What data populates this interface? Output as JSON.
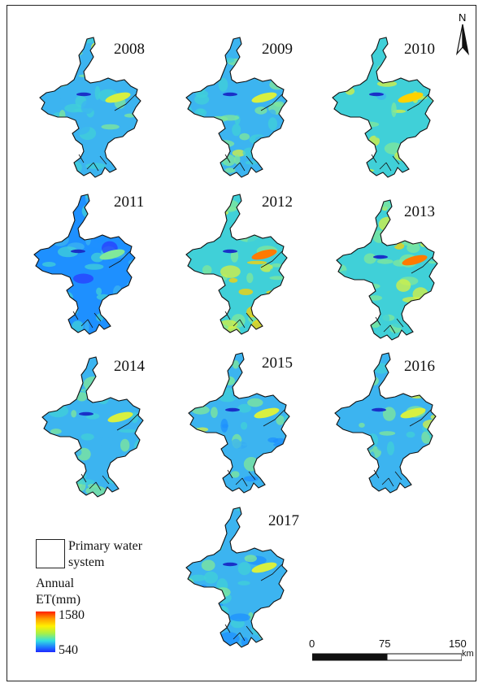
{
  "panels": [
    {
      "year": "2008",
      "warmth": 0.1
    },
    {
      "year": "2009",
      "warmth": 0.05
    },
    {
      "year": "2010",
      "warmth": 0.25
    },
    {
      "year": "2011",
      "warmth": -0.3
    },
    {
      "year": "2012",
      "warmth": 0.55
    },
    {
      "year": "2013",
      "warmth": 0.4
    },
    {
      "year": "2014",
      "warmth": 0.1
    },
    {
      "year": "2015",
      "warmth": 0.05
    },
    {
      "year": "2016",
      "warmth": 0.1
    },
    {
      "year": "2017",
      "warmth": -0.1
    }
  ],
  "north_arrow": {
    "label": "N"
  },
  "legend": {
    "water_system_label_1": "Primary water",
    "water_system_label_2": "system",
    "et_title_1": "Annual",
    "et_title_2": "ET(mm)",
    "max_value": "1580",
    "min_value": "540"
  },
  "scale_bar": {
    "tick_0": "0",
    "tick_75": "75",
    "tick_150": "150",
    "unit": "km"
  },
  "colors": {
    "high": "#ff1e00",
    "mid": "#fff000",
    "low": "#1e28ff",
    "base": "#3cb4f0"
  }
}
